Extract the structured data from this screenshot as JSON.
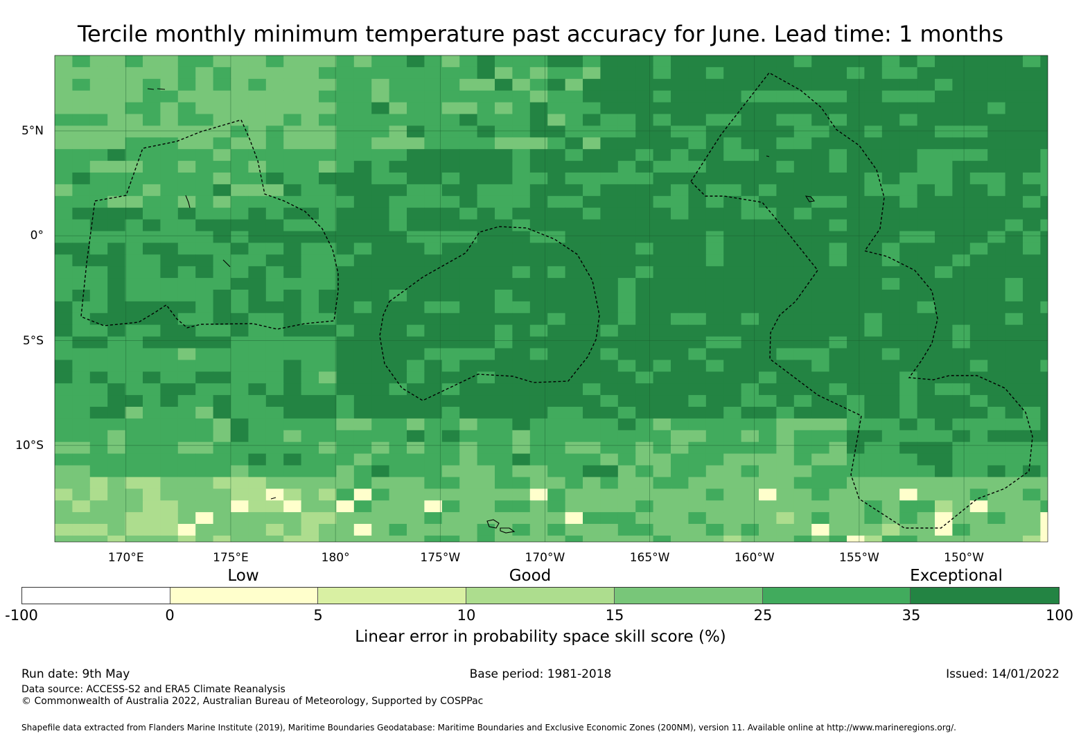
{
  "title": "Tercile monthly minimum temperature past accuracy for June. Lead time: 1 months",
  "map": {
    "lon_labels": [
      "170°E",
      "175°E",
      "180°",
      "175°W",
      "170°W",
      "165°W",
      "160°W",
      "155°W",
      "150°W"
    ],
    "lon_values": [
      170,
      175,
      180,
      185,
      190,
      195,
      200,
      205,
      210
    ],
    "lat_labels": [
      "5°N",
      "0°",
      "5°S",
      "10°S"
    ],
    "lat_values": [
      5,
      0,
      -5,
      -10
    ],
    "lon_range": [
      166.6,
      214.0
    ],
    "lat_range": [
      -14.6,
      8.6
    ],
    "grid_resolution_deg": 0.83,
    "boundaries": "dashed EEZ outlines (Tuvalu/Kiribati Gilbert, Phoenix Islands, Line Islands)",
    "color_map": {
      "below_0": "#ffffff",
      "0_5": "#ffffcc",
      "5_10": "#d9f0a3",
      "10_15": "#addd8e",
      "15_25": "#78c679",
      "25_35": "#41ab5d",
      "35_100": "#238443"
    }
  },
  "colorbar": {
    "categories": [
      "Low",
      "Good",
      "Exceptional"
    ],
    "ticks": [
      "-100",
      "0",
      "5",
      "10",
      "15",
      "25",
      "35",
      "100"
    ],
    "colors": [
      "#ffffff",
      "#ffffcc",
      "#d9f0a3",
      "#addd8e",
      "#78c679",
      "#41ab5d",
      "#238443"
    ],
    "label": "Linear error in probability space skill score (%)"
  },
  "footer": {
    "run_date": "Run date: 9th May",
    "base_period": "Base period: 1981-2018",
    "issued": "Issued: 14/01/2022",
    "data_source": "Data source: ACCESS-S2 and ERA5 Climate Reanalysis",
    "copyright": "© Commonwealth of Australia 2022, Australian Bureau of Meteorology, Supported by COSPPac",
    "shapefile": "Shapefile data extracted from Flanders Marine Institute (2019), Maritime Boundaries Geodatabase: Maritime Boundaries and Exclusive Economic Zones (200NM), version 11. Available online at http://www.marineregions.org/."
  }
}
